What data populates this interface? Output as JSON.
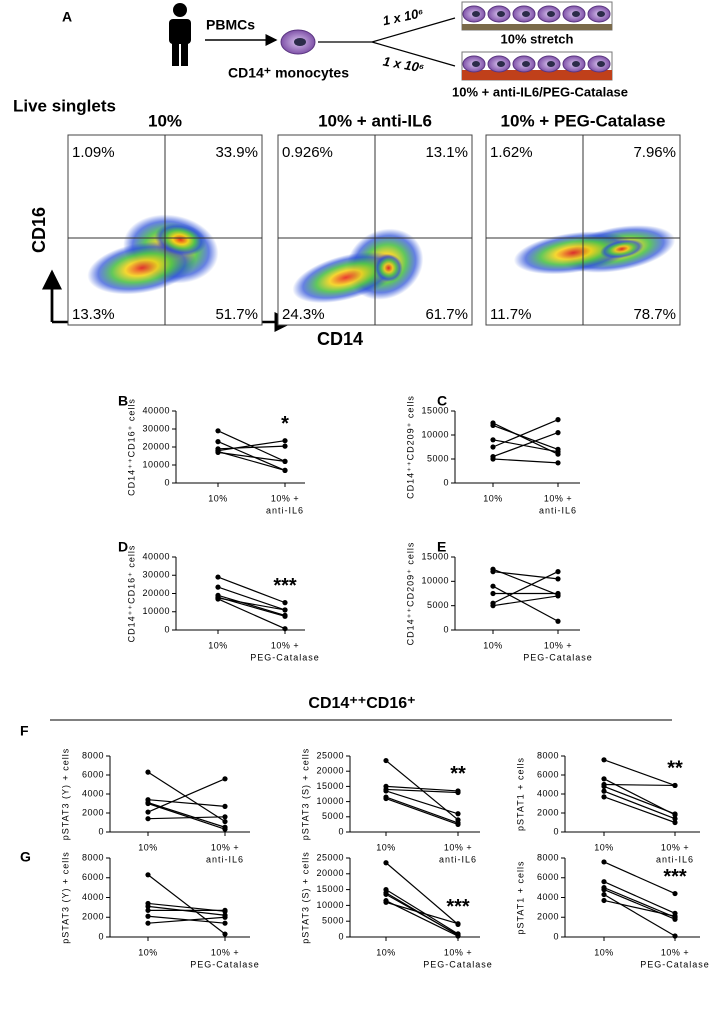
{
  "panel_a": {
    "label": "A",
    "source": "PBMCs",
    "cell_type": "CD14⁺ monocytes",
    "seeding": [
      "1 x 10⁶",
      "1 x 10⁶"
    ],
    "conditions": [
      "10% stretch",
      "10% + anti-IL6/PEG-Catalase"
    ],
    "gate": "Live singlets",
    "x_axis": "CD14",
    "y_axis": "CD16",
    "plots": [
      {
        "title": "10%",
        "quadrants": [
          "1.09%",
          "33.9%",
          "13.3%",
          "51.7%"
        ]
      },
      {
        "title": "10% + anti-IL6",
        "quadrants": [
          "0.926%",
          "13.1%",
          "24.3%",
          "61.7%"
        ]
      },
      {
        "title": "10% + PEG-Catalase",
        "quadrants": [
          "1.62%",
          "7.96%",
          "11.7%",
          "78.7%"
        ]
      }
    ]
  },
  "section_title": "CD14⁺⁺CD16⁺",
  "chart_data": [
    {
      "type": "paired",
      "label": "B",
      "y_label": "CD14⁺⁺CD16⁺ cells",
      "categories": [
        "10%",
        "10% +"
      ],
      "treatment": "anti-IL6",
      "ylim": [
        0,
        40000
      ],
      "yticks": [
        0,
        10000,
        20000,
        30000,
        40000
      ],
      "color": "#000000",
      "significance": "*",
      "series": [
        {
          "values": [
            29000,
            12000
          ]
        },
        {
          "values": [
            23000,
            7000
          ]
        },
        {
          "values": [
            19000,
            20500
          ]
        },
        {
          "values": [
            18000,
            23500
          ]
        },
        {
          "values": [
            17500,
            7000
          ]
        },
        {
          "values": [
            17000,
            12000
          ]
        }
      ]
    },
    {
      "type": "paired",
      "label": "C",
      "y_label": "CD14⁺⁺CD209⁺ cells",
      "categories": [
        "10%",
        "10% +"
      ],
      "treatment": "anti-IL6",
      "ylim": [
        0,
        15000
      ],
      "yticks": [
        0,
        5000,
        10000,
        15000
      ],
      "color": "#000000",
      "series": [
        {
          "values": [
            12500,
            6000
          ]
        },
        {
          "values": [
            12000,
            7000
          ]
        },
        {
          "values": [
            9000,
            6500
          ]
        },
        {
          "values": [
            7500,
            13200
          ]
        },
        {
          "values": [
            5500,
            10500
          ]
        },
        {
          "values": [
            5000,
            4200
          ]
        }
      ]
    },
    {
      "type": "paired",
      "label": "D",
      "y_label": "CD14⁺⁺CD16⁺ cells",
      "categories": [
        "10%",
        "10% +"
      ],
      "treatment": "PEG-Catalase",
      "ylim": [
        0,
        40000
      ],
      "yticks": [
        0,
        10000,
        20000,
        30000,
        40000
      ],
      "color": "#000000",
      "significance": "***",
      "series": [
        {
          "values": [
            29000,
            15000
          ]
        },
        {
          "values": [
            23500,
            11000
          ]
        },
        {
          "values": [
            19000,
            8000
          ]
        },
        {
          "values": [
            18000,
            7500
          ]
        },
        {
          "values": [
            17500,
            11000
          ]
        },
        {
          "values": [
            17000,
            700
          ]
        }
      ]
    },
    {
      "type": "paired",
      "label": "E",
      "y_label": "CD14⁺⁺CD209⁺ cells",
      "categories": [
        "10%",
        "10% +"
      ],
      "treatment": "PEG-Catalase",
      "ylim": [
        0,
        15000
      ],
      "yticks": [
        0,
        5000,
        10000,
        15000
      ],
      "color": "#000000",
      "series": [
        {
          "values": [
            12500,
            7200
          ]
        },
        {
          "values": [
            12000,
            10500
          ]
        },
        {
          "values": [
            9000,
            1800
          ]
        },
        {
          "values": [
            7500,
            7500
          ]
        },
        {
          "values": [
            5500,
            12000
          ]
        },
        {
          "values": [
            5000,
            7000
          ]
        }
      ]
    },
    {
      "type": "paired",
      "label": "F",
      "y_label": "pSTAT3 (Y) + cells",
      "categories": [
        "10%",
        "10% +"
      ],
      "treatment": "anti-IL6",
      "ylim": [
        0,
        8000
      ],
      "yticks": [
        0,
        2000,
        4000,
        6000,
        8000
      ],
      "color": "#000000",
      "series": [
        {
          "values": [
            6300,
            1100
          ]
        },
        {
          "values": [
            3400,
            2700
          ]
        },
        {
          "values": [
            3100,
            500
          ]
        },
        {
          "values": [
            2100,
            5600
          ]
        },
        {
          "values": [
            1400,
            1600
          ]
        },
        {
          "values": [
            3000,
            300
          ]
        }
      ]
    },
    {
      "type": "paired",
      "y_label": "pSTAT3 (S) + cells",
      "categories": [
        "10%",
        "10% +"
      ],
      "treatment": "anti-IL6",
      "ylim": [
        0,
        25000
      ],
      "yticks": [
        0,
        5000,
        10000,
        15000,
        20000,
        25000
      ],
      "color": "#000000",
      "significance": "**",
      "series": [
        {
          "values": [
            23500,
            4000
          ]
        },
        {
          "values": [
            15000,
            13500
          ]
        },
        {
          "values": [
            14000,
            13000
          ]
        },
        {
          "values": [
            13500,
            6000
          ]
        },
        {
          "values": [
            11500,
            3000
          ]
        },
        {
          "values": [
            11000,
            2500
          ]
        }
      ]
    },
    {
      "type": "paired",
      "y_label": "pSTAT1 + cells",
      "categories": [
        "10%",
        "10% +"
      ],
      "treatment": "anti-IL6",
      "ylim": [
        0,
        8000
      ],
      "yticks": [
        0,
        2000,
        4000,
        6000,
        8000
      ],
      "color": "#000000",
      "significance": "**",
      "series": [
        {
          "values": [
            7600,
            4900
          ]
        },
        {
          "values": [
            5600,
            1800
          ]
        },
        {
          "values": [
            5000,
            4900
          ]
        },
        {
          "values": [
            4800,
            1900
          ]
        },
        {
          "values": [
            4300,
            1400
          ]
        },
        {
          "values": [
            3700,
            1000
          ]
        }
      ]
    },
    {
      "type": "paired",
      "label": "G",
      "y_label": "pSTAT3 (Y) + cells",
      "categories": [
        "10%",
        "10% +"
      ],
      "treatment": "PEG-Catalase",
      "ylim": [
        0,
        8000
      ],
      "yticks": [
        0,
        2000,
        4000,
        6000,
        8000
      ],
      "color": "#000000",
      "series": [
        {
          "values": [
            6300,
            300
          ]
        },
        {
          "values": [
            3400,
            2600
          ]
        },
        {
          "values": [
            3100,
            2200
          ]
        },
        {
          "values": [
            2700,
            2700
          ]
        },
        {
          "values": [
            2100,
            1400
          ]
        },
        {
          "values": [
            1400,
            2000
          ]
        }
      ]
    },
    {
      "type": "paired",
      "y_label": "pSTAT3 (S) + cells",
      "categories": [
        "10%",
        "10% +"
      ],
      "treatment": "PEG-Catalase",
      "ylim": [
        0,
        25000
      ],
      "yticks": [
        0,
        5000,
        10000,
        15000,
        20000,
        25000
      ],
      "color": "#000000",
      "significance": "***",
      "series": [
        {
          "values": [
            23500,
            4000
          ]
        },
        {
          "values": [
            15000,
            1000
          ]
        },
        {
          "values": [
            14000,
            500
          ]
        },
        {
          "values": [
            13500,
            700
          ]
        },
        {
          "values": [
            11500,
            300
          ]
        },
        {
          "values": [
            11000,
            4200
          ]
        }
      ]
    },
    {
      "type": "paired",
      "y_label": "pSTAT1 + cells",
      "categories": [
        "10%",
        "10% +"
      ],
      "treatment": "PEG-Catalase",
      "ylim": [
        0,
        8000
      ],
      "yticks": [
        0,
        2000,
        4000,
        6000,
        8000
      ],
      "color": "#000000",
      "significance": "***",
      "series": [
        {
          "values": [
            7600,
            4400
          ]
        },
        {
          "values": [
            5600,
            2400
          ]
        },
        {
          "values": [
            5000,
            2000
          ]
        },
        {
          "values": [
            4800,
            1800
          ]
        },
        {
          "values": [
            4300,
            100
          ]
        },
        {
          "values": [
            3700,
            2100
          ]
        }
      ]
    }
  ]
}
